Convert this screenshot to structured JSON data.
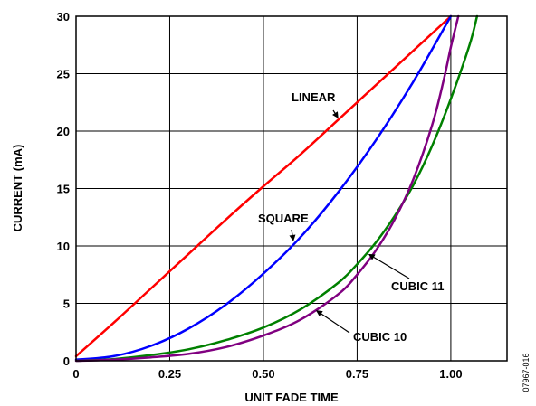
{
  "chart_data": {
    "type": "line",
    "xlabel": "UNIT FADE TIME",
    "ylabel": "CURRENT (mA)",
    "xlim": [
      0,
      1.15
    ],
    "ylim": [
      0,
      30
    ],
    "grid": true,
    "x_tick_labels": [
      "0",
      "0.25",
      "0.50",
      "0.75",
      "1.00"
    ],
    "x_ticks": [
      0,
      0.25,
      0.5,
      0.75,
      1.0
    ],
    "y_tick_labels": [
      "0",
      "5",
      "10",
      "15",
      "20",
      "25",
      "30"
    ],
    "y_ticks": [
      0,
      5,
      10,
      15,
      20,
      25,
      30
    ],
    "series": [
      {
        "name": "LINEAR",
        "color": "#ff0000",
        "x": [
          0,
          0.1,
          0.2,
          0.3,
          0.4,
          0.5,
          0.6,
          0.7,
          0.8,
          0.9,
          1.0
        ],
        "y": [
          0.4,
          3.3,
          6.3,
          9.3,
          12.3,
          15.2,
          18.0,
          21.0,
          24.0,
          27.0,
          30.0
        ]
      },
      {
        "name": "SQUARE",
        "color": "#0000ff",
        "x": [
          0,
          0.1,
          0.2,
          0.3,
          0.4,
          0.5,
          0.6,
          0.7,
          0.8,
          0.9,
          1.0
        ],
        "y": [
          0.1,
          0.4,
          1.3,
          2.8,
          4.9,
          7.6,
          10.8,
          14.7,
          19.2,
          24.3,
          30.0
        ]
      },
      {
        "name": "CUBIC 11",
        "color": "#008000",
        "x": [
          0,
          0.1,
          0.2,
          0.3,
          0.4,
          0.5,
          0.6,
          0.7,
          0.75,
          0.8,
          0.85,
          0.9,
          0.95,
          1.0,
          1.05,
          1.07
        ],
        "y": [
          0,
          0.15,
          0.5,
          1.0,
          1.8,
          2.9,
          4.5,
          6.8,
          8.4,
          10.3,
          12.6,
          15.3,
          18.7,
          22.8,
          27.5,
          30.0
        ]
      },
      {
        "name": "CUBIC 10",
        "color": "#800080",
        "x": [
          0,
          0.1,
          0.2,
          0.3,
          0.4,
          0.5,
          0.6,
          0.7,
          0.75,
          0.8,
          0.85,
          0.9,
          0.95,
          0.98,
          1.0,
          1.02
        ],
        "y": [
          0,
          0.1,
          0.3,
          0.6,
          1.2,
          2.2,
          3.6,
          5.8,
          7.5,
          9.6,
          12.3,
          15.8,
          20.5,
          24.3,
          27.3,
          30.0
        ]
      }
    ],
    "annotations": [
      {
        "text": "LINEAR",
        "series": "LINEAR",
        "x": 0.7,
        "y": 21.1
      },
      {
        "text": "SQUARE",
        "series": "SQUARE",
        "x": 0.58,
        "y": 10.4
      },
      {
        "text": "CUBIC 11",
        "series": "CUBIC 11",
        "x": 0.78,
        "y": 9.3
      },
      {
        "text": "CUBIC 10",
        "series": "CUBIC 10",
        "x": 0.64,
        "y": 4.4
      }
    ],
    "figure_id": "07967-016"
  }
}
